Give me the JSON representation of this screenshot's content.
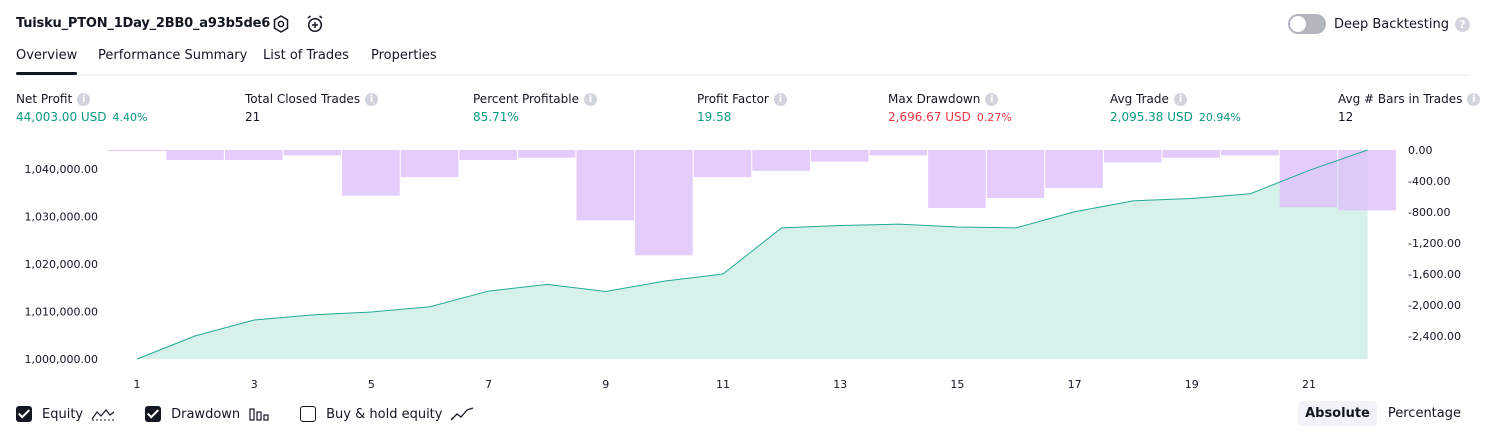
{
  "header": {
    "title": "Tuisku_PTON_1Day_2BB0_a93b5de6",
    "deep_backtesting_label": "Deep Backtesting",
    "deep_backtesting_enabled": false,
    "help_glyph": "?"
  },
  "tabs": [
    {
      "label": "Overview",
      "active": true
    },
    {
      "label": "Performance Summary",
      "active": false
    },
    {
      "label": "List of Trades",
      "active": false
    },
    {
      "label": "Properties",
      "active": false
    }
  ],
  "metrics": [
    {
      "label": "Net Profit",
      "value": "44,003.00 USD",
      "pct": "4.40%",
      "color": "green"
    },
    {
      "label": "Total Closed Trades",
      "value": "21",
      "pct": "",
      "color": "dark"
    },
    {
      "label": "Percent Profitable",
      "value": "85.71%",
      "pct": "",
      "color": "green"
    },
    {
      "label": "Profit Factor",
      "value": "19.58",
      "pct": "",
      "color": "green"
    },
    {
      "label": "Max Drawdown",
      "value": "2,696.67 USD",
      "pct": "0.27%",
      "color": "red"
    },
    {
      "label": "Avg Trade",
      "value": "2,095.38 USD",
      "pct": "20.94%",
      "color": "green"
    },
    {
      "label": "Avg # Bars in Trades",
      "value": "12",
      "pct": "",
      "color": "dark"
    }
  ],
  "info_glyph": "i",
  "chart_data": {
    "type": "area",
    "equity": {
      "x": [
        1,
        2,
        3,
        4,
        5,
        6,
        7,
        8,
        9,
        10,
        11,
        12,
        13,
        14,
        15,
        16,
        17,
        18,
        19,
        20,
        21,
        22
      ],
      "values": [
        1000000,
        1004900,
        1008200,
        1009300,
        1009900,
        1011000,
        1014300,
        1015700,
        1014200,
        1016400,
        1017900,
        1027600,
        1028100,
        1028400,
        1027800,
        1027600,
        1031000,
        1033300,
        1033800,
        1034800,
        1039700,
        1044000
      ]
    },
    "drawdown": {
      "bars": [
        -10,
        -130,
        -130,
        -70,
        -590,
        -350,
        -130,
        -100,
        -910,
        -1360,
        -350,
        -270,
        -150,
        -70,
        -750,
        -620,
        -490,
        -160,
        -100,
        -70,
        -740,
        -780
      ],
      "axis_ticks": [
        "0.00",
        "-400.00",
        "-800.00",
        "-1,200.00",
        "-1,600.00",
        "-2,000.00",
        "-2,400.00"
      ],
      "ylim": [
        -2700,
        0
      ]
    },
    "left_axis": {
      "ticks": [
        "1,040,000.00",
        "1,030,000.00",
        "1,020,000.00",
        "1,010,000.00",
        "1,000,000.00"
      ],
      "tick_values": [
        1040000,
        1030000,
        1020000,
        1010000,
        1000000
      ],
      "ylim": [
        1000000,
        1044000
      ]
    },
    "x_ticks": [
      "1",
      "3",
      "5",
      "7",
      "9",
      "11",
      "13",
      "15",
      "17",
      "19",
      "21"
    ],
    "colors": {
      "equity_line": "#22ab94",
      "equity_fill": "#d6f1ea",
      "drawdown_bar": "#dfc3fb",
      "overlap_bar": "#bdb5ec"
    }
  },
  "legend": {
    "items": [
      {
        "label": "Equity",
        "checked": true,
        "icon": "equity-line-icon"
      },
      {
        "label": "Drawdown",
        "checked": true,
        "icon": "drawdown-bars-icon"
      },
      {
        "label": "Buy & hold equity",
        "checked": false,
        "icon": "buy-hold-line-icon"
      }
    ]
  },
  "mode": {
    "absolute_label": "Absolute",
    "percentage_label": "Percentage",
    "selected": "Absolute"
  }
}
